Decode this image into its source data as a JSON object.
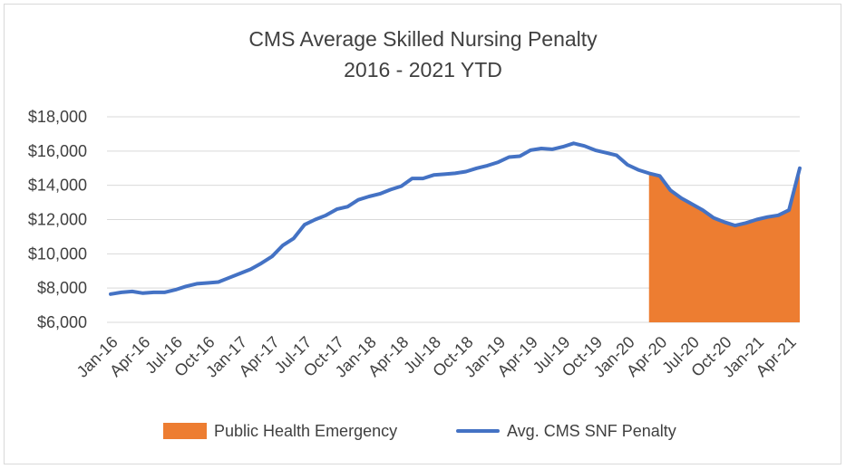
{
  "chart_data": {
    "type": "line",
    "title_line1": "CMS Average Skilled Nursing Penalty",
    "title_line2": "2016 - 2021 YTD",
    "y_ticks": [
      "$6,000",
      "$8,000",
      "$10,000",
      "$12,000",
      "$14,000",
      "$16,000",
      "$18,000"
    ],
    "y_tick_values": [
      6000,
      8000,
      10000,
      12000,
      14000,
      16000,
      18000
    ],
    "ylim": [
      6000,
      18000
    ],
    "x_tick_labels": [
      "Jan-16",
      "Apr-16",
      "Jul-16",
      "Oct-16",
      "Jan-17",
      "Apr-17",
      "Jul-17",
      "Oct-17",
      "Jan-18",
      "Apr-18",
      "Jul-18",
      "Oct-18",
      "Jan-19",
      "Apr-19",
      "Jul-19",
      "Oct-19",
      "Jan-20",
      "Apr-20",
      "Jul-20",
      "Oct-20",
      "Jan-21",
      "Apr-21"
    ],
    "months": [
      "Jan-16",
      "Feb-16",
      "Mar-16",
      "Apr-16",
      "May-16",
      "Jun-16",
      "Jul-16",
      "Aug-16",
      "Sep-16",
      "Oct-16",
      "Nov-16",
      "Dec-16",
      "Jan-17",
      "Feb-17",
      "Mar-17",
      "Apr-17",
      "May-17",
      "Jun-17",
      "Jul-17",
      "Aug-17",
      "Sep-17",
      "Oct-17",
      "Nov-17",
      "Dec-17",
      "Jan-18",
      "Feb-18",
      "Mar-18",
      "Apr-18",
      "May-18",
      "Jun-18",
      "Jul-18",
      "Aug-18",
      "Sep-18",
      "Oct-18",
      "Nov-18",
      "Dec-18",
      "Jan-19",
      "Feb-19",
      "Mar-19",
      "Apr-19",
      "May-19",
      "Jun-19",
      "Jul-19",
      "Aug-19",
      "Sep-19",
      "Oct-19",
      "Nov-19",
      "Dec-19",
      "Jan-20",
      "Feb-20",
      "Mar-20",
      "Apr-20",
      "May-20",
      "Jun-20",
      "Jul-20",
      "Aug-20",
      "Sep-20",
      "Oct-20",
      "Nov-20",
      "Dec-20",
      "Jan-21",
      "Feb-21",
      "Mar-21",
      "Apr-21",
      "May-21"
    ],
    "series": [
      {
        "name": "Avg. CMS SNF Penalty",
        "color": "#4472c4",
        "values": [
          7650,
          7750,
          7800,
          7700,
          7750,
          7750,
          7900,
          8100,
          8250,
          8300,
          8350,
          8600,
          8850,
          9100,
          9450,
          9850,
          10500,
          10900,
          11700,
          12000,
          12250,
          12600,
          12750,
          13150,
          13350,
          13500,
          13750,
          13950,
          14400,
          14400,
          14600,
          14650,
          14700,
          14800,
          15000,
          15150,
          15350,
          15650,
          15700,
          16050,
          16150,
          16100,
          16250,
          16450,
          16300,
          16050,
          15900,
          15750,
          15200,
          14900,
          14700,
          14550,
          13700,
          13250,
          12900,
          12550,
          12100,
          11850,
          11650,
          11800,
          12000,
          12150,
          12250,
          12550,
          15000
        ]
      }
    ],
    "shaded": {
      "name": "Public Health Emergency",
      "color": "#ed7d31",
      "start": "Mar-20",
      "end": "May-21"
    },
    "legend": [
      {
        "label": "Public Health Emergency",
        "kind": "box",
        "color": "#ed7d31"
      },
      {
        "label": "Avg. CMS SNF Penalty",
        "kind": "line",
        "color": "#4472c4"
      }
    ],
    "grid": true,
    "legend_position": "bottom"
  }
}
